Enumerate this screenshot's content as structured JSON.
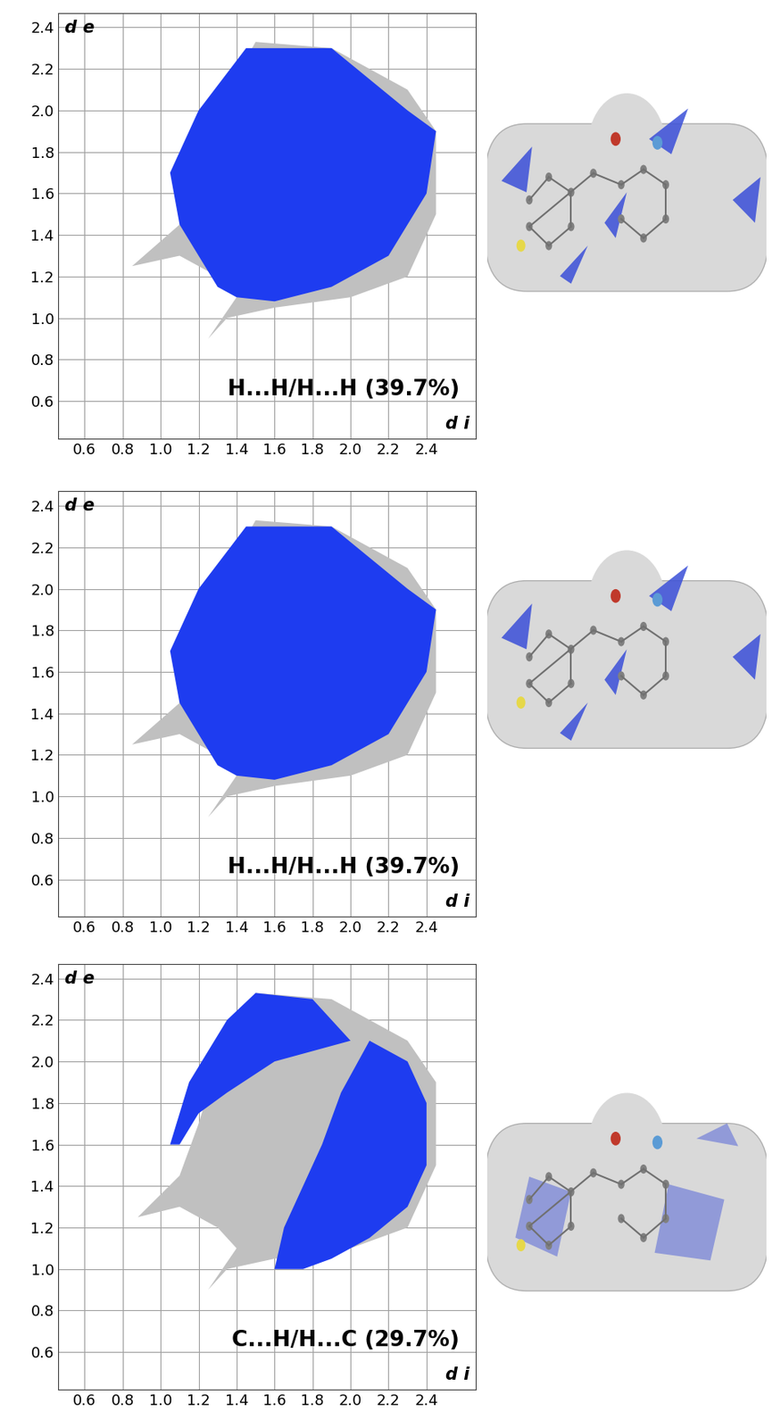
{
  "chart_data": [
    {
      "type": "area",
      "xlabel": "d i",
      "ylabel": "d e",
      "annotation": "H...H/H...H (39.7%)",
      "xlim": [
        0.46,
        2.66
      ],
      "ylim": [
        0.42,
        2.47
      ],
      "xticks": [
        0.6,
        0.8,
        1.0,
        1.2,
        1.4,
        1.6,
        1.8,
        2.0,
        2.2,
        2.4
      ],
      "yticks": [
        0.6,
        0.8,
        1.0,
        1.2,
        1.4,
        1.6,
        1.8,
        2.0,
        2.2,
        2.4
      ],
      "grid": true,
      "series": [
        {
          "color": "#c0c0c0",
          "x": [
            1.3,
            1.5,
            1.9,
            2.3,
            2.45,
            2.45,
            2.3,
            2.0,
            1.6,
            1.35,
            1.25,
            1.4,
            1.3,
            1.1,
            0.85,
            1.1,
            1.2
          ],
          "y": [
            2.0,
            2.33,
            2.3,
            2.1,
            1.9,
            1.5,
            1.2,
            1.1,
            1.05,
            1.0,
            0.9,
            1.1,
            1.2,
            1.3,
            1.25,
            1.45,
            1.7
          ]
        },
        {
          "color": "#1e3cf0",
          "x": [
            1.05,
            1.2,
            1.45,
            1.9,
            2.3,
            2.45,
            2.4,
            2.2,
            1.9,
            1.6,
            1.4,
            1.3,
            1.2,
            1.1
          ],
          "y": [
            1.7,
            2.0,
            2.3,
            2.3,
            2.0,
            1.9,
            1.6,
            1.3,
            1.15,
            1.08,
            1.1,
            1.15,
            1.3,
            1.45
          ]
        }
      ]
    },
    {
      "type": "area",
      "xlabel": "d i",
      "ylabel": "d e",
      "annotation": "H...H/H...H (39.7%)",
      "xlim": [
        0.46,
        2.66
      ],
      "ylim": [
        0.42,
        2.47
      ],
      "xticks": [
        0.6,
        0.8,
        1.0,
        1.2,
        1.4,
        1.6,
        1.8,
        2.0,
        2.2,
        2.4
      ],
      "yticks": [
        0.6,
        0.8,
        1.0,
        1.2,
        1.4,
        1.6,
        1.8,
        2.0,
        2.2,
        2.4
      ],
      "grid": true,
      "series": [
        {
          "color": "#c0c0c0",
          "x": [
            1.3,
            1.5,
            1.9,
            2.3,
            2.45,
            2.45,
            2.3,
            2.0,
            1.6,
            1.35,
            1.25,
            1.4,
            1.3,
            1.1,
            0.85,
            1.1,
            1.2
          ],
          "y": [
            2.0,
            2.33,
            2.3,
            2.1,
            1.9,
            1.5,
            1.2,
            1.1,
            1.05,
            1.0,
            0.9,
            1.1,
            1.2,
            1.3,
            1.25,
            1.45,
            1.7
          ]
        },
        {
          "color": "#1e3cf0",
          "x": [
            1.05,
            1.2,
            1.45,
            1.9,
            2.3,
            2.45,
            2.4,
            2.2,
            1.9,
            1.6,
            1.4,
            1.3,
            1.2,
            1.1
          ],
          "y": [
            1.7,
            2.0,
            2.3,
            2.3,
            2.0,
            1.9,
            1.6,
            1.3,
            1.15,
            1.08,
            1.1,
            1.15,
            1.3,
            1.45
          ]
        }
      ]
    },
    {
      "type": "area",
      "xlabel": "d i",
      "ylabel": "d e",
      "annotation": "C...H/H...C (29.7%)",
      "xlim": [
        0.46,
        2.66
      ],
      "ylim": [
        0.42,
        2.47
      ],
      "xticks": [
        0.6,
        0.8,
        1.0,
        1.2,
        1.4,
        1.6,
        1.8,
        2.0,
        2.2,
        2.4
      ],
      "yticks": [
        0.6,
        0.8,
        1.0,
        1.2,
        1.4,
        1.6,
        1.8,
        2.0,
        2.2,
        2.4
      ],
      "grid": true,
      "series": [
        {
          "color": "#c0c0c0",
          "x": [
            1.3,
            1.5,
            1.9,
            2.3,
            2.45,
            2.45,
            2.3,
            2.0,
            1.6,
            1.35,
            1.25,
            1.4,
            1.3,
            1.1,
            0.88,
            1.1,
            1.2
          ],
          "y": [
            2.0,
            2.33,
            2.3,
            2.1,
            1.9,
            1.5,
            1.2,
            1.1,
            1.05,
            1.0,
            0.9,
            1.1,
            1.2,
            1.3,
            1.25,
            1.45,
            1.7
          ]
        },
        {
          "color": "#1e3cf0",
          "x": [
            1.05,
            1.15,
            1.35,
            1.5,
            1.8,
            2.0,
            1.6,
            1.35,
            1.2,
            1.1
          ],
          "y": [
            1.6,
            1.9,
            2.2,
            2.33,
            2.3,
            2.1,
            2.0,
            1.85,
            1.75,
            1.6
          ]
        },
        {
          "color": "#1e3cf0",
          "x": [
            1.6,
            1.65,
            1.75,
            1.85,
            1.95,
            2.1,
            2.3,
            2.4,
            2.4,
            2.3,
            2.1,
            1.9,
            1.75
          ],
          "y": [
            1.0,
            1.2,
            1.4,
            1.6,
            1.85,
            2.1,
            2.0,
            1.8,
            1.5,
            1.3,
            1.15,
            1.05,
            1.0
          ]
        }
      ]
    }
  ]
}
